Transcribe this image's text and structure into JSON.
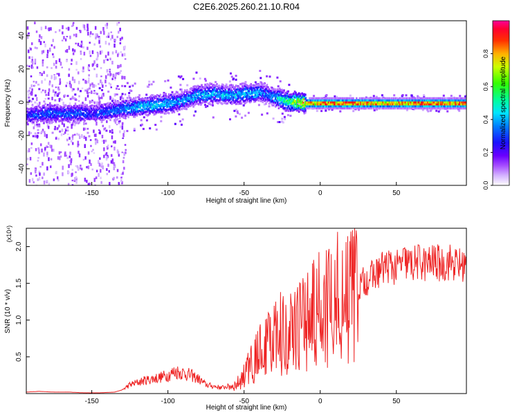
{
  "title": "C2E6.2025.260.21.10.R04",
  "chart_data": [
    {
      "type": "heatmap",
      "title": "C2E6.2025.260.21.10.R04",
      "xlabel": "Height of straight line (km)",
      "ylabel": "Frequency (Hz)",
      "xlim": [
        -193,
        96
      ],
      "ylim": [
        -50,
        49
      ],
      "xticks": [
        -150,
        -100,
        -50,
        0,
        50
      ],
      "yticks": [
        -40,
        -20,
        0,
        20,
        40
      ],
      "colorbar": {
        "label": "Normalized spectral amplitude",
        "range": [
          0,
          1
        ],
        "ticks": [
          "0.0",
          "0.2",
          "0.4",
          "0.6",
          "0.8"
        ],
        "colormap": [
          "#ffffff",
          "#b388ff",
          "#7b00ff",
          "#1a00ff",
          "#0066ff",
          "#00ccff",
          "#00ffaa",
          "#33ff00",
          "#ccff00",
          "#ffcc00",
          "#ff6600",
          "#ff0000",
          "#ff0099"
        ]
      },
      "ridge": {
        "x": [
          -193,
          -180,
          -170,
          -160,
          -150,
          -140,
          -130,
          -120,
          -110,
          -100,
          -90,
          -80,
          -70,
          -60,
          -50,
          -45,
          -40,
          -35,
          -30,
          -25,
          -20,
          -15,
          -10,
          -5,
          0,
          20,
          40,
          60,
          80,
          96
        ],
        "freq": [
          -7,
          -6,
          -6,
          -6,
          -6,
          -5,
          -3,
          -2,
          -1,
          0,
          2,
          5,
          6,
          5,
          6,
          6,
          7,
          5,
          4,
          2,
          1,
          1,
          0,
          0,
          0,
          0,
          0,
          0,
          0,
          0
        ],
        "amplitude": [
          0.3,
          0.35,
          0.35,
          0.35,
          0.3,
          0.35,
          0.4,
          0.45,
          0.45,
          0.45,
          0.4,
          0.45,
          0.45,
          0.45,
          0.45,
          0.45,
          0.4,
          0.35,
          0.45,
          0.55,
          0.65,
          0.8,
          0.85,
          0.9,
          0.95,
          0.95,
          0.9,
          0.95,
          0.95,
          0.95
        ]
      }
    },
    {
      "type": "line",
      "xlabel": "Height of straight line (km)",
      "ylabel": "SNR (10 * v/v)",
      "scale_label": "(x10⁴)",
      "xlim": [
        -193,
        96
      ],
      "ylim": [
        0,
        2.25
      ],
      "xticks": [
        -150,
        -100,
        -50,
        0,
        50
      ],
      "yticks": [
        0.5,
        1.0,
        1.5,
        2.0
      ],
      "ytick_labels": [
        "0.5",
        "1.0",
        "1.5",
        "2.0"
      ],
      "color": "#ee2222",
      "series": [
        {
          "name": "SNR",
          "x": [
            -193,
            -185,
            -175,
            -165,
            -155,
            -145,
            -135,
            -130,
            -125,
            -120,
            -115,
            -110,
            -105,
            -100,
            -95,
            -90,
            -85,
            -80,
            -75,
            -70,
            -65,
            -60,
            -55,
            -50,
            -45,
            -40,
            -35,
            -30,
            -25,
            -20,
            -15,
            -10,
            -5,
            0,
            5,
            10,
            15,
            20,
            25,
            30,
            35,
            40,
            45,
            50,
            55,
            60,
            65,
            70,
            75,
            80,
            85,
            90,
            96
          ],
          "y": [
            0.02,
            0.03,
            0.02,
            0.02,
            0.01,
            0.01,
            0.02,
            0.05,
            0.12,
            0.15,
            0.18,
            0.2,
            0.22,
            0.25,
            0.3,
            0.28,
            0.25,
            0.2,
            0.12,
            0.1,
            0.08,
            0.1,
            0.12,
            0.25,
            0.4,
            0.55,
            0.65,
            0.75,
            0.85,
            0.9,
            0.9,
            1.0,
            1.05,
            1.15,
            1.15,
            1.2,
            1.1,
            1.35,
            1.45,
            1.55,
            1.6,
            1.7,
            1.75,
            1.7,
            1.8,
            1.75,
            1.8,
            1.75,
            1.8,
            1.75,
            1.8,
            1.75,
            1.75
          ]
        }
      ]
    }
  ]
}
